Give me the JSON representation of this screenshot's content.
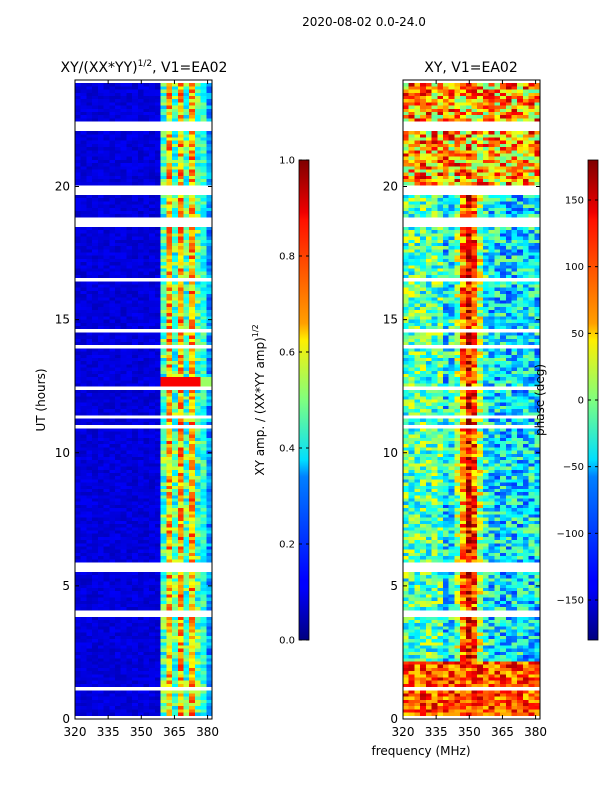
{
  "suptitle": "2020-08-02 0.0-24.0",
  "left_panel": {
    "title_main": "XY/(XX*YY)",
    "title_sup": "1/2",
    "title_tail": ", V1=EA02"
  },
  "right_panel": {
    "title": "XY, V1=EA02"
  },
  "xlabel": "frequency (MHz)",
  "ylabel": "UT (hours)",
  "cbar1": {
    "label_main": "XY amp. / (XX*YY amp)",
    "label_sup": "1/2"
  },
  "cbar2": {
    "label": "phase (deg)"
  },
  "chart_data": [
    {
      "type": "heatmap",
      "title": "XY/(XX*YY)^1/2, V1=EA02",
      "xlabel": "frequency (MHz)",
      "ylabel": "UT (hours)",
      "xlim": [
        320,
        382
      ],
      "ylim": [
        0,
        24
      ],
      "xticks": [
        320,
        335,
        350,
        365,
        380
      ],
      "yticks": [
        0,
        5,
        10,
        15,
        20
      ],
      "colorbar": {
        "label": "XY amp. / (XX*YY amp)^1/2",
        "range": [
          0.0,
          1.0
        ],
        "ticks": [
          0.0,
          0.2,
          0.4,
          0.6,
          0.8,
          1.0
        ],
        "tick_labels": [
          "0.0",
          "0.2",
          "0.4",
          "0.6",
          "0.8",
          "1.0"
        ],
        "colormap": "jet"
      },
      "features": [
        {
          "description": "background amplitude",
          "freq_range": [
            320,
            360
          ],
          "value": 0.08
        },
        {
          "description": "enhanced channel columns",
          "freq_range": [
            360,
            382
          ],
          "value_range": [
            0.3,
            0.9
          ]
        },
        {
          "description": "peak band near UT 12.6",
          "freq_range": [
            362,
            380
          ],
          "value": 0.9
        }
      ],
      "data_gaps_ut": [
        5.8,
        18.7,
        19.9,
        22.3
      ]
    },
    {
      "type": "heatmap",
      "title": "XY, V1=EA02",
      "xlabel": "frequency (MHz)",
      "ylabel": "UT (hours)",
      "xlim": [
        320,
        382
      ],
      "ylim": [
        0,
        24
      ],
      "xticks": [
        320,
        335,
        350,
        365,
        380
      ],
      "yticks": [
        0,
        5,
        10,
        15,
        20
      ],
      "colorbar": {
        "label": "phase (deg)",
        "range": [
          -180,
          180
        ],
        "ticks": [
          -150,
          -100,
          -50,
          0,
          50,
          100,
          150
        ],
        "tick_labels": [
          "−150",
          "−100",
          "−50",
          "0",
          "50",
          "100",
          "150"
        ],
        "colormap": "jet"
      },
      "features": [
        {
          "description": "phase ridge",
          "freq_center": 350,
          "value_range": [
            100,
            180
          ]
        },
        {
          "description": "low-frequency phase",
          "freq_range": [
            320,
            340
          ],
          "value_range": [
            -120,
            0
          ]
        }
      ],
      "data_gaps_ut": [
        5.8,
        18.7,
        19.9,
        22.3
      ]
    }
  ]
}
